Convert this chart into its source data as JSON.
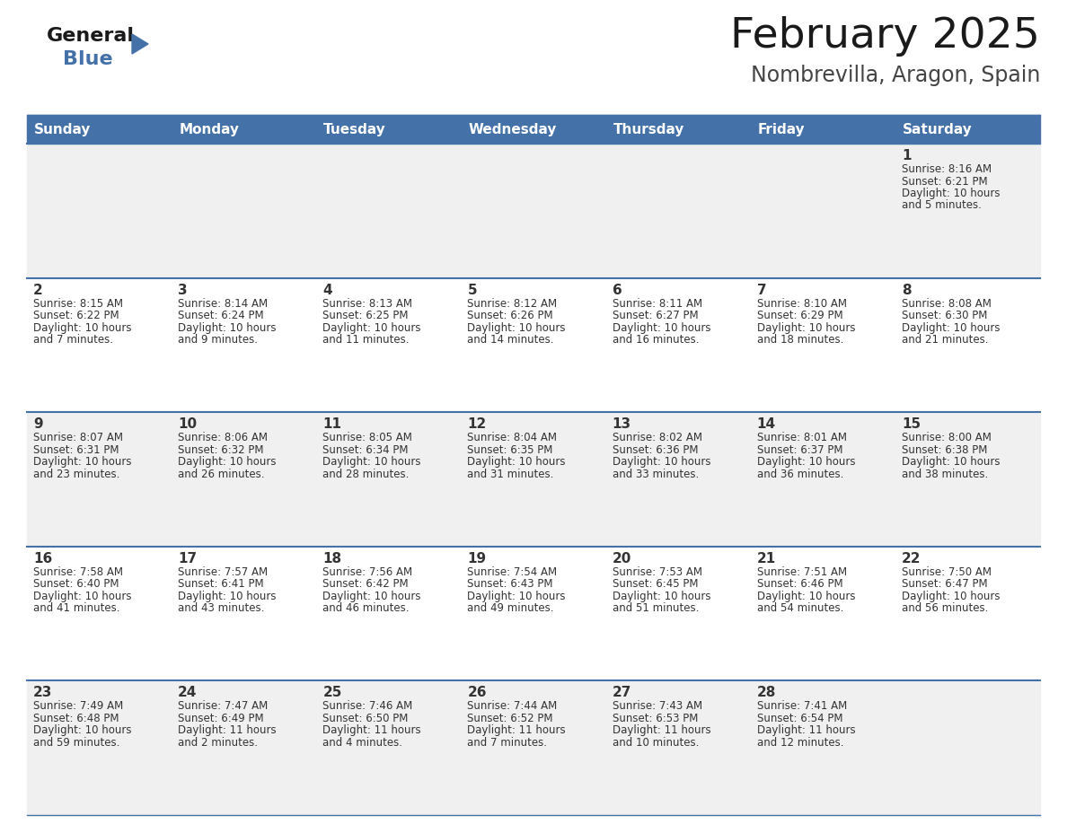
{
  "title": "February 2025",
  "subtitle": "Nombrevilla, Aragon, Spain",
  "days_of_week": [
    "Sunday",
    "Monday",
    "Tuesday",
    "Wednesday",
    "Thursday",
    "Friday",
    "Saturday"
  ],
  "header_bg": "#4472a8",
  "header_text": "#ffffff",
  "row_bg_odd": "#f0f0f0",
  "row_bg_even": "#ffffff",
  "cell_text": "#333333",
  "border_color": "#4472a8",
  "title_color": "#1a1a1a",
  "subtitle_color": "#444444",
  "logo_general_color": "#1a1a1a",
  "logo_blue_color": "#4472a8",
  "logo_triangle_color": "#4472a8",
  "calendar_data": [
    [
      null,
      null,
      null,
      null,
      null,
      null,
      {
        "day": "1",
        "sunrise": "8:16 AM",
        "sunset": "6:21 PM",
        "daylight": "10 hours",
        "daylight2": "and 5 minutes."
      }
    ],
    [
      {
        "day": "2",
        "sunrise": "8:15 AM",
        "sunset": "6:22 PM",
        "daylight": "10 hours",
        "daylight2": "and 7 minutes."
      },
      {
        "day": "3",
        "sunrise": "8:14 AM",
        "sunset": "6:24 PM",
        "daylight": "10 hours",
        "daylight2": "and 9 minutes."
      },
      {
        "day": "4",
        "sunrise": "8:13 AM",
        "sunset": "6:25 PM",
        "daylight": "10 hours",
        "daylight2": "and 11 minutes."
      },
      {
        "day": "5",
        "sunrise": "8:12 AM",
        "sunset": "6:26 PM",
        "daylight": "10 hours",
        "daylight2": "and 14 minutes."
      },
      {
        "day": "6",
        "sunrise": "8:11 AM",
        "sunset": "6:27 PM",
        "daylight": "10 hours",
        "daylight2": "and 16 minutes."
      },
      {
        "day": "7",
        "sunrise": "8:10 AM",
        "sunset": "6:29 PM",
        "daylight": "10 hours",
        "daylight2": "and 18 minutes."
      },
      {
        "day": "8",
        "sunrise": "8:08 AM",
        "sunset": "6:30 PM",
        "daylight": "10 hours",
        "daylight2": "and 21 minutes."
      }
    ],
    [
      {
        "day": "9",
        "sunrise": "8:07 AM",
        "sunset": "6:31 PM",
        "daylight": "10 hours",
        "daylight2": "and 23 minutes."
      },
      {
        "day": "10",
        "sunrise": "8:06 AM",
        "sunset": "6:32 PM",
        "daylight": "10 hours",
        "daylight2": "and 26 minutes."
      },
      {
        "day": "11",
        "sunrise": "8:05 AM",
        "sunset": "6:34 PM",
        "daylight": "10 hours",
        "daylight2": "and 28 minutes."
      },
      {
        "day": "12",
        "sunrise": "8:04 AM",
        "sunset": "6:35 PM",
        "daylight": "10 hours",
        "daylight2": "and 31 minutes."
      },
      {
        "day": "13",
        "sunrise": "8:02 AM",
        "sunset": "6:36 PM",
        "daylight": "10 hours",
        "daylight2": "and 33 minutes."
      },
      {
        "day": "14",
        "sunrise": "8:01 AM",
        "sunset": "6:37 PM",
        "daylight": "10 hours",
        "daylight2": "and 36 minutes."
      },
      {
        "day": "15",
        "sunrise": "8:00 AM",
        "sunset": "6:38 PM",
        "daylight": "10 hours",
        "daylight2": "and 38 minutes."
      }
    ],
    [
      {
        "day": "16",
        "sunrise": "7:58 AM",
        "sunset": "6:40 PM",
        "daylight": "10 hours",
        "daylight2": "and 41 minutes."
      },
      {
        "day": "17",
        "sunrise": "7:57 AM",
        "sunset": "6:41 PM",
        "daylight": "10 hours",
        "daylight2": "and 43 minutes."
      },
      {
        "day": "18",
        "sunrise": "7:56 AM",
        "sunset": "6:42 PM",
        "daylight": "10 hours",
        "daylight2": "and 46 minutes."
      },
      {
        "day": "19",
        "sunrise": "7:54 AM",
        "sunset": "6:43 PM",
        "daylight": "10 hours",
        "daylight2": "and 49 minutes."
      },
      {
        "day": "20",
        "sunrise": "7:53 AM",
        "sunset": "6:45 PM",
        "daylight": "10 hours",
        "daylight2": "and 51 minutes."
      },
      {
        "day": "21",
        "sunrise": "7:51 AM",
        "sunset": "6:46 PM",
        "daylight": "10 hours",
        "daylight2": "and 54 minutes."
      },
      {
        "day": "22",
        "sunrise": "7:50 AM",
        "sunset": "6:47 PM",
        "daylight": "10 hours",
        "daylight2": "and 56 minutes."
      }
    ],
    [
      {
        "day": "23",
        "sunrise": "7:49 AM",
        "sunset": "6:48 PM",
        "daylight": "10 hours",
        "daylight2": "and 59 minutes."
      },
      {
        "day": "24",
        "sunrise": "7:47 AM",
        "sunset": "6:49 PM",
        "daylight": "11 hours",
        "daylight2": "and 2 minutes."
      },
      {
        "day": "25",
        "sunrise": "7:46 AM",
        "sunset": "6:50 PM",
        "daylight": "11 hours",
        "daylight2": "and 4 minutes."
      },
      {
        "day": "26",
        "sunrise": "7:44 AM",
        "sunset": "6:52 PM",
        "daylight": "11 hours",
        "daylight2": "and 7 minutes."
      },
      {
        "day": "27",
        "sunrise": "7:43 AM",
        "sunset": "6:53 PM",
        "daylight": "11 hours",
        "daylight2": "and 10 minutes."
      },
      {
        "day": "28",
        "sunrise": "7:41 AM",
        "sunset": "6:54 PM",
        "daylight": "11 hours",
        "daylight2": "and 12 minutes."
      },
      null
    ]
  ]
}
